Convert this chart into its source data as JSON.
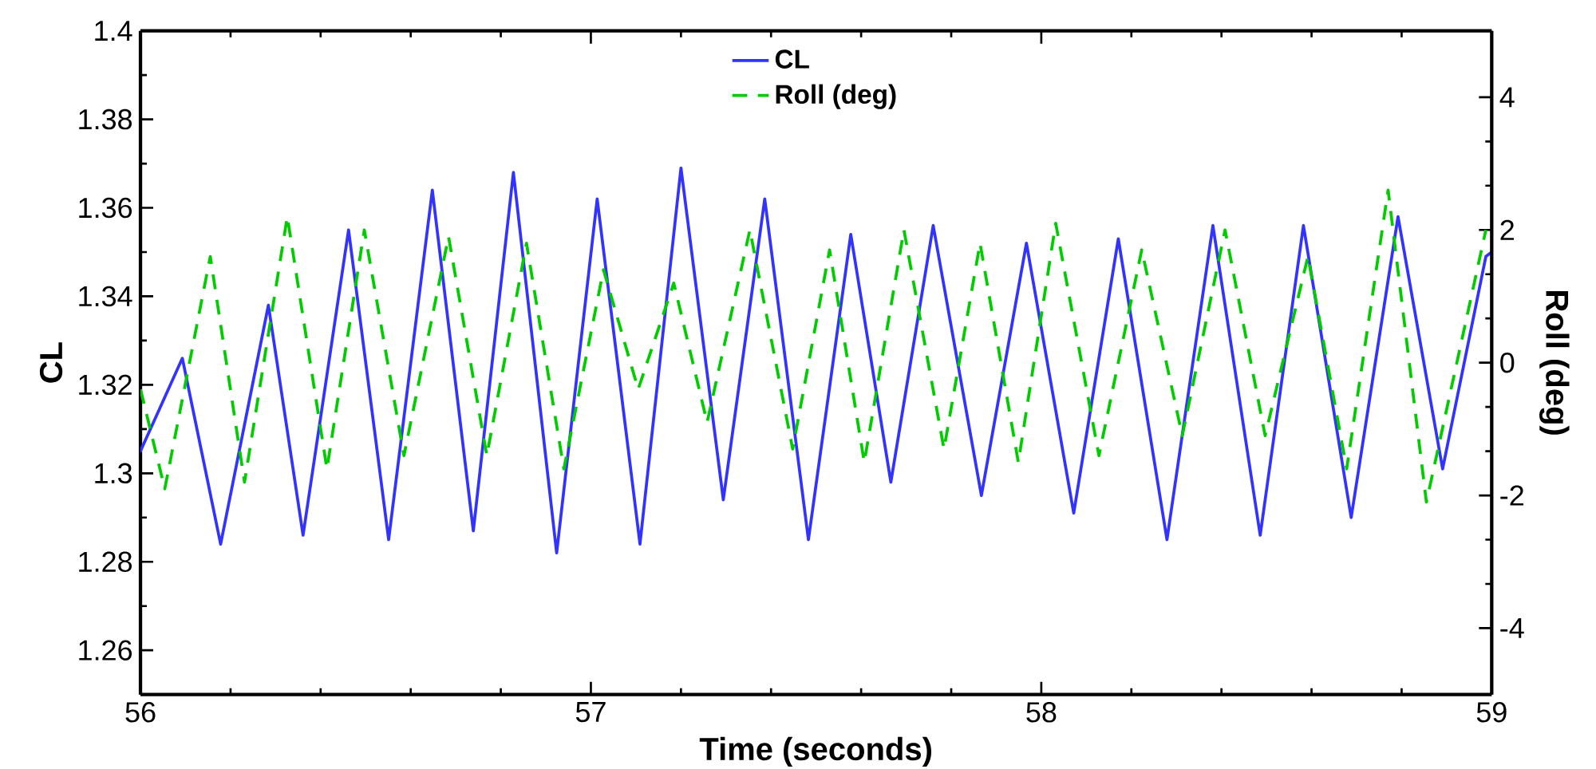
{
  "chart_data": {
    "type": "line",
    "xlabel": "Time (seconds)",
    "ylabel": "CL",
    "y2label": "Roll (deg)",
    "xlim": [
      56,
      59
    ],
    "xticks": [
      56,
      57,
      58,
      59
    ],
    "ylim": [
      1.25,
      1.4
    ],
    "yticks": [
      1.26,
      1.28,
      1.3,
      1.32,
      1.34,
      1.36,
      1.38,
      1.4
    ],
    "y2lim": [
      -5,
      5
    ],
    "y2ticks": [
      -4,
      -2,
      0,
      2,
      4
    ],
    "legend": "top",
    "grid": false,
    "series": [
      {
        "name": "CL",
        "color": "#3333ff",
        "line_style": "solid",
        "x": [
          56.0,
          56.093,
          56.178,
          56.284,
          56.361,
          56.462,
          56.551,
          56.648,
          56.739,
          56.828,
          56.924,
          57.014,
          57.109,
          57.2,
          57.294,
          57.386,
          57.483,
          57.577,
          57.666,
          57.76,
          57.867,
          57.967,
          58.072,
          58.171,
          58.279,
          58.381,
          58.486,
          58.582,
          58.688,
          58.792,
          58.891,
          58.941,
          58.987,
          59.0
        ],
        "values": [
          1.305,
          1.326,
          1.284,
          1.338,
          1.286,
          1.355,
          1.285,
          1.364,
          1.287,
          1.368,
          1.282,
          1.362,
          1.284,
          1.369,
          1.294,
          1.362,
          1.285,
          1.354,
          1.298,
          1.356,
          1.295,
          1.352,
          1.291,
          1.353,
          1.285,
          1.356,
          1.286,
          1.356,
          1.29,
          1.358,
          1.301,
          1.326,
          1.349,
          1.35
        ]
      },
      {
        "name": "Roll (deg)",
        "color": "#00cc00",
        "line_style": "dashed",
        "axis": "y2",
        "x": [
          56.0,
          56.054,
          56.155,
          56.231,
          56.326,
          56.414,
          56.497,
          56.585,
          56.684,
          56.769,
          56.857,
          56.94,
          57.028,
          57.105,
          57.184,
          57.258,
          57.353,
          57.448,
          57.53,
          57.607,
          57.695,
          57.784,
          57.864,
          57.949,
          58.032,
          58.128,
          58.223,
          58.313,
          58.408,
          58.497,
          58.592,
          58.678,
          58.77,
          58.855,
          58.987
        ],
        "values": [
          -0.4,
          -1.9,
          1.6,
          -1.8,
          2.2,
          -1.6,
          2.0,
          -1.4,
          1.9,
          -1.4,
          1.8,
          -1.6,
          1.4,
          -0.4,
          1.2,
          -0.9,
          2.0,
          -1.3,
          1.7,
          -1.5,
          2.0,
          -1.3,
          1.8,
          -1.5,
          2.1,
          -1.4,
          1.7,
          -1.1,
          2.0,
          -1.1,
          1.6,
          -1.6,
          2.6,
          -2.1,
          2.0
        ]
      }
    ]
  }
}
